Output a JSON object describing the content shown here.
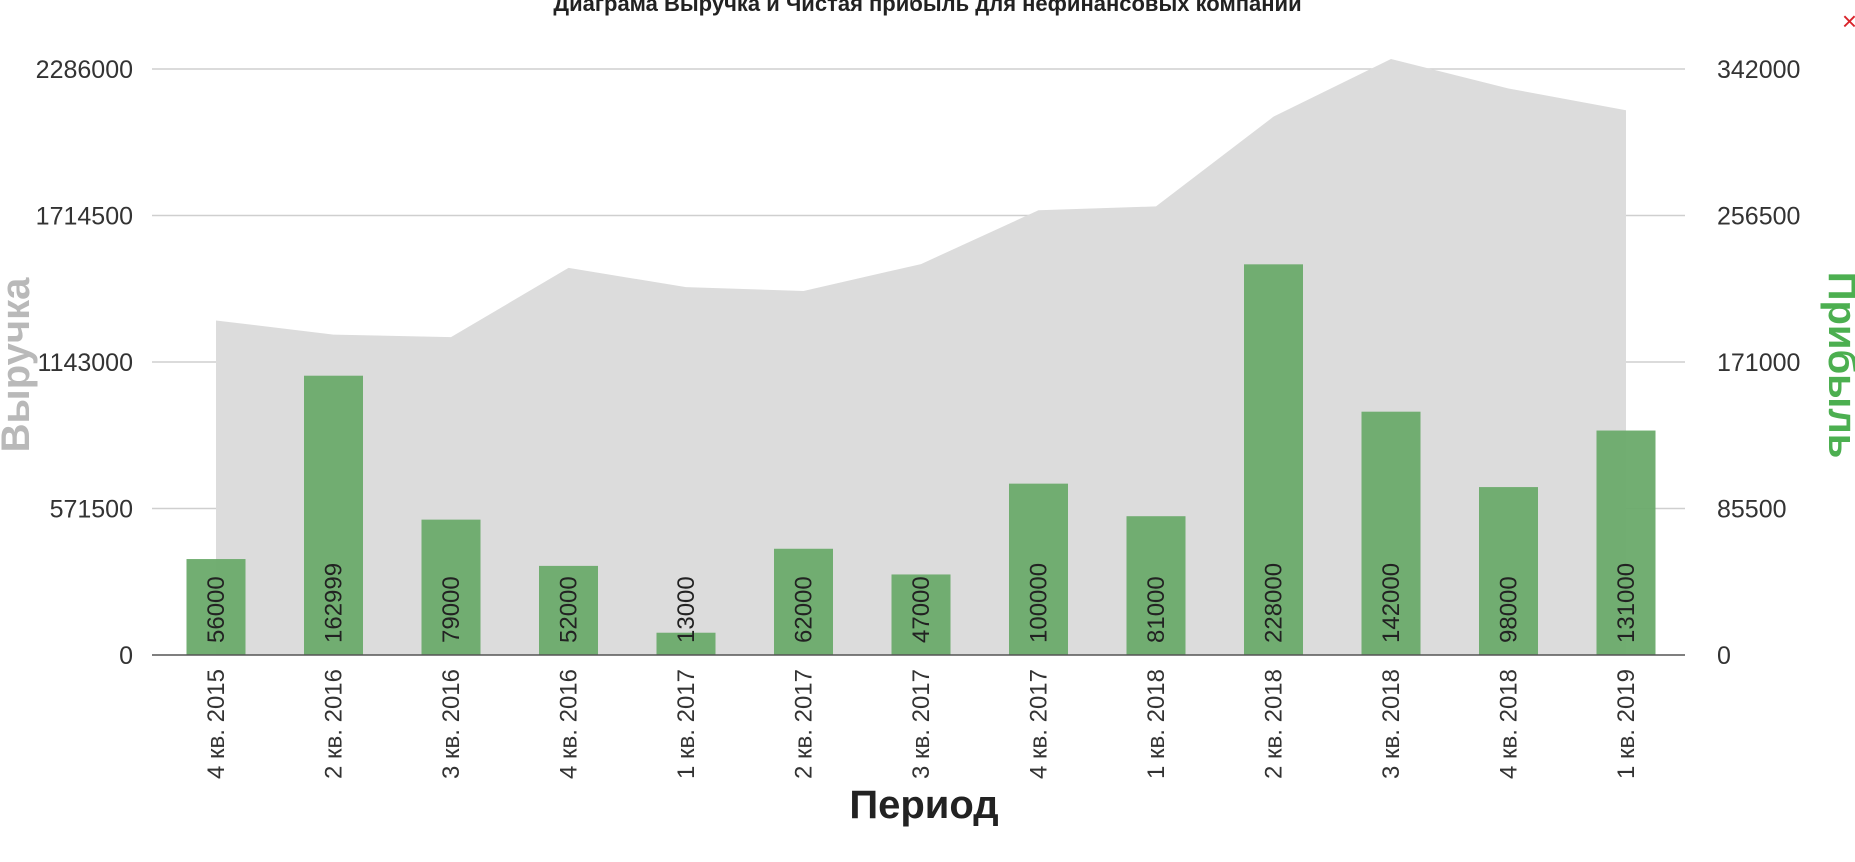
{
  "chart_data": {
    "title": "Диаграма Выручка и Чистая прибыль для нефинансовых компаний",
    "xlabel": "Период",
    "ylabel_left": "Выручка",
    "ylabel_right": "Прибыль",
    "categories": [
      "4 кв. 2015",
      "2 кв. 2016",
      "3 кв. 2016",
      "4 кв. 2016",
      "1 кв. 2017",
      "2 кв. 2017",
      "3 кв. 2017",
      "4 кв. 2017",
      "1 кв. 2018",
      "2 кв. 2018",
      "3 кв. 2018",
      "4 кв. 2018",
      "1 кв. 2019"
    ],
    "series": [
      {
        "name": "Выручка",
        "type": "area",
        "axis": "left",
        "color": "#dcdcdc",
        "values": [
          1305000,
          1250000,
          1240000,
          1510000,
          1435000,
          1420000,
          1525000,
          1735000,
          1750000,
          2100000,
          2325000,
          2210000,
          2125000
        ]
      },
      {
        "name": "Прибыль",
        "type": "bar",
        "axis": "right",
        "color": "#6aaa6a",
        "values": [
          56000,
          162999,
          79000,
          52000,
          13000,
          62000,
          47000,
          100000,
          81000,
          228000,
          142000,
          98000,
          131000
        ]
      }
    ],
    "y_left": {
      "min": 0,
      "max": 2286000,
      "ticks": [
        "0",
        "571500",
        "1143000",
        "1714500",
        "2286000"
      ]
    },
    "y_right": {
      "min": 0,
      "max": 342000,
      "ticks": [
        "0",
        "85500",
        "171000",
        "256500",
        "342000"
      ]
    },
    "grid": true,
    "colors": {
      "revenue_label": "#b9b9b9",
      "profit_label": "#4caf50",
      "close": "#d9232a"
    }
  },
  "close_symbol": "×"
}
